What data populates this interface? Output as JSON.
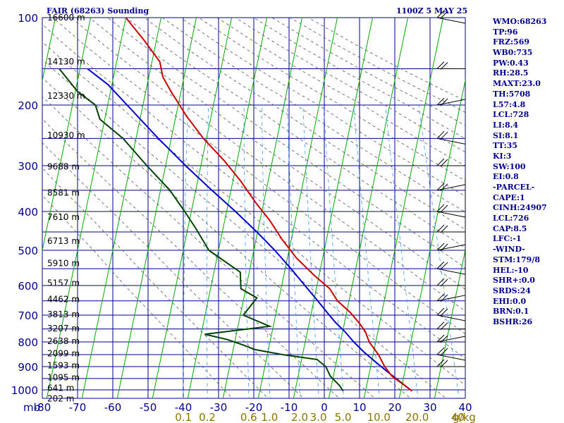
{
  "header": {
    "title": "FAIR (68263) Sounding",
    "time": "1100Z  5 MAY 25"
  },
  "stats": [
    "WMO:68263",
    "TP:96",
    "FRZ:569",
    "WB0:735",
    "PW:0.43",
    "RH:28.5",
    "MAXT:23.0",
    "TH:5708",
    "L57:4.8",
    "LCL:728",
    "LI:8.4",
    "SI:8.1",
    "TT:35",
    "KI:3",
    "SW:100",
    "EI:0.8",
    "-PARCEL-",
    "CAPE:1",
    "CINH:24907",
    "LCL:726",
    "CAP:8.5",
    "LFC:-1",
    "-WIND-",
    "STM:179/8",
    "HEL:-10",
    "SHR+:0.0",
    "SRDS:24",
    "EHI:0.0",
    "BRN:0.1",
    "BSHR:26"
  ],
  "colors": {
    "grid": "#00008b",
    "isotherm": "#00aa00",
    "temperature": "#cc0000",
    "dewpoint": "#004400",
    "parcel": "#0000cc",
    "dry_adiabat": "#555555",
    "mixing_ratio": "#3399ff",
    "mix_label": "#8b7500"
  },
  "chart_data": {
    "type": "skew-t",
    "pressure_unit_label": "mb",
    "mixing_ratio_unit_label": "g/kg",
    "pressure_ticks": [
      100,
      200,
      300,
      400,
      500,
      600,
      700,
      800,
      900,
      1000
    ],
    "temperature_ticks": [
      -80,
      -70,
      -60,
      -50,
      -40,
      -30,
      -20,
      -10,
      0,
      10,
      20,
      30,
      40
    ],
    "temperature_tick_labels": [
      "-80",
      "-70",
      "-60",
      "-50",
      "-40",
      "-30",
      "-20",
      "-10",
      "0",
      "10",
      "20",
      "30",
      "40"
    ],
    "mixing_ratio_labels": [
      "0.1",
      "0.2",
      "0.6",
      "1.0",
      "2.0",
      "3.0",
      "5.0",
      "10.0",
      "20.0",
      "40"
    ],
    "mixing_ratio_values": [
      0.1,
      0.2,
      0.6,
      1.0,
      2.0,
      3.0,
      5.0,
      10.0,
      20.0,
      40
    ],
    "heights": [
      {
        "p": 100,
        "label": "16600 m"
      },
      {
        "p": 142,
        "label": "14130 m"
      },
      {
        "p": 186,
        "label": "12330 m"
      },
      {
        "p": 245,
        "label": "10930 m"
      },
      {
        "p": 302,
        "label": "9688 m"
      },
      {
        "p": 356,
        "label": "8581 m"
      },
      {
        "p": 413,
        "label": "7610 m"
      },
      {
        "p": 474,
        "label": "6713 m"
      },
      {
        "p": 535,
        "label": "5910 m"
      },
      {
        "p": 592,
        "label": "5157 m"
      },
      {
        "p": 645,
        "label": "4462 m"
      },
      {
        "p": 697,
        "label": "3813 m"
      },
      {
        "p": 748,
        "label": "3207 m"
      },
      {
        "p": 797,
        "label": "2638 m"
      },
      {
        "p": 846,
        "label": "2099 m"
      },
      {
        "p": 896,
        "label": "1593 m"
      },
      {
        "p": 945,
        "label": "1095 m"
      },
      {
        "p": 992,
        "label": "641 m"
      },
      {
        "p": 1040,
        "label": "202 m"
      }
    ],
    "temperature": [
      [
        1005,
        23.3
      ],
      [
        980,
        21.0
      ],
      [
        940,
        17.0
      ],
      [
        900,
        14.5
      ],
      [
        850,
        12.2
      ],
      [
        800,
        9.0
      ],
      [
        760,
        7.4
      ],
      [
        730,
        5.4
      ],
      [
        690,
        2.2
      ],
      [
        650,
        -2.0
      ],
      [
        610,
        -4.8
      ],
      [
        570,
        -9.8
      ],
      [
        520,
        -15.8
      ],
      [
        470,
        -20.8
      ],
      [
        420,
        -25.5
      ],
      [
        380,
        -30.2
      ],
      [
        330,
        -36.0
      ],
      [
        290,
        -41.9
      ],
      [
        250,
        -49.2
      ],
      [
        215,
        -55.5
      ],
      [
        180,
        -61.5
      ],
      [
        160,
        -65.0
      ],
      [
        142,
        -67.0
      ],
      [
        120,
        -73.0
      ],
      [
        100,
        -80.0
      ]
    ],
    "dewpoint": [
      [
        1005,
        3.8
      ],
      [
        980,
        2.5
      ],
      [
        940,
        -0.5
      ],
      [
        900,
        -2.2
      ],
      [
        870,
        -5.0
      ],
      [
        850,
        -15.0
      ],
      [
        830,
        -23.0
      ],
      [
        810,
        -27.0
      ],
      [
        790,
        -31.5
      ],
      [
        770,
        -38.0
      ],
      [
        740,
        -20.0
      ],
      [
        700,
        -28.0
      ],
      [
        640,
        -25.0
      ],
      [
        610,
        -30.0
      ],
      [
        560,
        -31.0
      ],
      [
        500,
        -41.0
      ],
      [
        440,
        -46.0
      ],
      [
        400,
        -50.0
      ],
      [
        350,
        -55.5
      ],
      [
        300,
        -63.5
      ],
      [
        250,
        -72.0
      ],
      [
        220,
        -79.8
      ],
      [
        200,
        -82.0
      ],
      [
        180,
        -88.0
      ],
      [
        150,
        -95.0
      ]
    ],
    "parcel": [
      [
        1005,
        23.3
      ],
      [
        960,
        19.2
      ],
      [
        920,
        15.4
      ],
      [
        880,
        11.7
      ],
      [
        840,
        8.0
      ],
      [
        800,
        4.6
      ],
      [
        760,
        1.6
      ],
      [
        726,
        -1.5
      ],
      [
        700,
        -3.6
      ],
      [
        650,
        -7.6
      ],
      [
        600,
        -12.0
      ],
      [
        550,
        -16.8
      ],
      [
        500,
        -22.3
      ],
      [
        450,
        -28.4
      ],
      [
        400,
        -35.6
      ],
      [
        350,
        -43.6
      ],
      [
        300,
        -52.5
      ],
      [
        250,
        -62.0
      ],
      [
        200,
        -73.0
      ],
      [
        170,
        -80.0
      ],
      [
        150,
        -87.0
      ]
    ],
    "wind_levels_mb": [
      100,
      150,
      200,
      250,
      300,
      350,
      400,
      450,
      500,
      550,
      600,
      650,
      700,
      750,
      800,
      850,
      900
    ]
  }
}
